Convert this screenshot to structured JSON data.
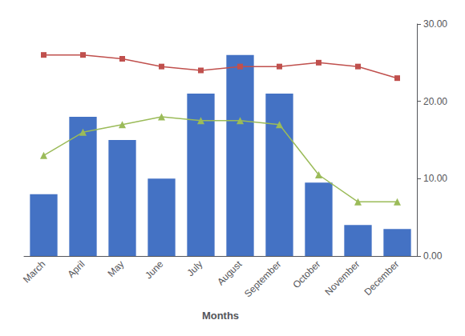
{
  "chart_data": {
    "type": "bar",
    "xlabel": "Months",
    "categories": [
      "March",
      "April",
      "May",
      "June",
      "July",
      "August",
      "September",
      "October",
      "November",
      "December"
    ],
    "series": [
      {
        "type": "bar",
        "color": "#4472C4",
        "values": [
          8,
          18,
          15,
          10,
          21,
          26,
          21,
          9.5,
          4,
          3.5
        ]
      },
      {
        "type": "line",
        "color": "#C0504D",
        "marker": "square",
        "axis": "y2",
        "values": [
          26,
          26,
          25.5,
          24.5,
          24,
          24.5,
          24.5,
          25,
          24.5,
          23
        ]
      },
      {
        "type": "line",
        "color": "#9BBB59",
        "marker": "triangle",
        "axis": "y2",
        "values": [
          13,
          16,
          17,
          18,
          17.5,
          17.5,
          17,
          10.5,
          7,
          7
        ]
      }
    ],
    "ylim": [
      0,
      30
    ],
    "y2lim": [
      0,
      30
    ],
    "y2ticks": [
      {
        "value": 0,
        "label": "0.00"
      },
      {
        "value": 10,
        "label": "10.00"
      },
      {
        "value": 20,
        "label": "20.00"
      },
      {
        "value": 30,
        "label": "30.00"
      }
    ],
    "grid": false
  }
}
